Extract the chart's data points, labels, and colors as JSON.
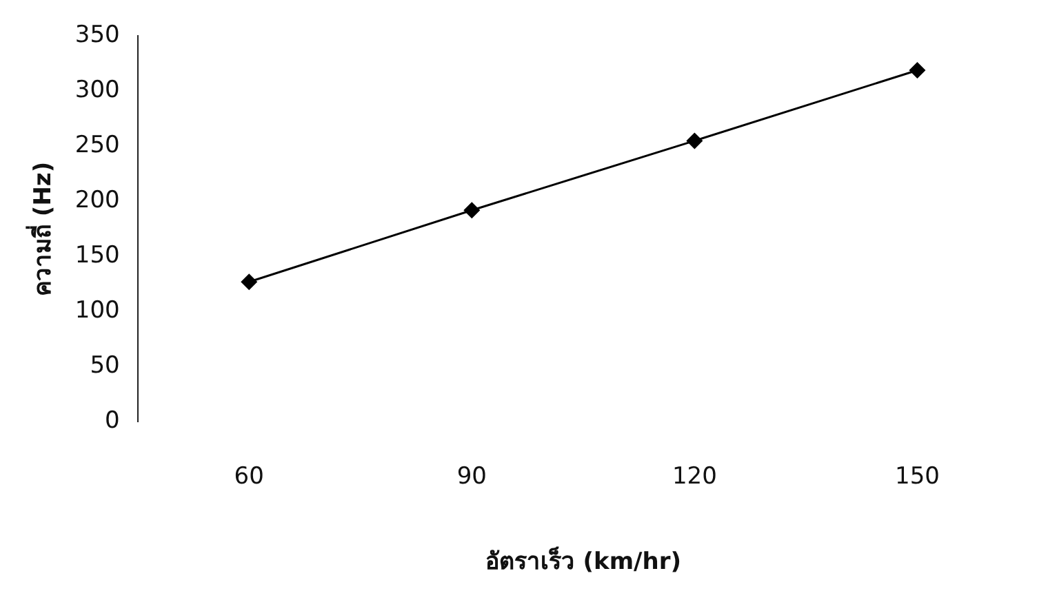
{
  "chart_data": {
    "type": "line",
    "xlabel": "อัตราเร็ว (km/hr)",
    "ylabel": "ความถี่ (Hz)",
    "categories": [
      "60",
      "90",
      "120",
      "150"
    ],
    "series": [
      {
        "color": "#000000",
        "values": [
          127,
          192,
          255,
          319
        ]
      }
    ],
    "ylim": [
      0,
      350
    ],
    "yticks": [
      0,
      50,
      100,
      150,
      200,
      250,
      300,
      350
    ],
    "marker": "diamond",
    "line_style": "solid",
    "grid": false,
    "legend": false
  }
}
